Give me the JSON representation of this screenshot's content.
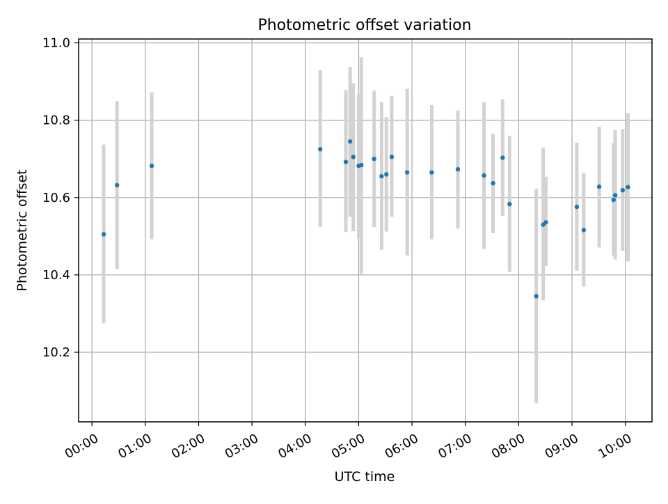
{
  "colors": {
    "point": "#1f77b4",
    "errorbar": "#d3d3d3",
    "grid": "#b0b0b0",
    "axes": "#000000"
  },
  "chart_data": {
    "type": "scatter",
    "title": "Photometric offset variation",
    "xlabel": "UTC time",
    "ylabel": "Photometric offset",
    "xlim": [
      -0.25,
      10.5
    ],
    "ylim": [
      10.02,
      11.01
    ],
    "grid": true,
    "x_tick_values": [
      0,
      1,
      2,
      3,
      4,
      5,
      6,
      7,
      8,
      9,
      10
    ],
    "x_tick_labels": [
      "00:00",
      "01:00",
      "02:00",
      "03:00",
      "04:00",
      "05:00",
      "06:00",
      "07:00",
      "08:00",
      "09:00",
      "10:00"
    ],
    "y_tick_values": [
      10.2,
      10.4,
      10.6,
      10.8,
      11.0
    ],
    "y_tick_labels": [
      "10.2",
      "10.4",
      "10.6",
      "10.8",
      "11.0"
    ],
    "points": [
      {
        "x": 0.22,
        "y": 10.505,
        "ylow": 10.275,
        "yhigh": 10.737
      },
      {
        "x": 0.47,
        "y": 10.632,
        "ylow": 10.415,
        "yhigh": 10.849
      },
      {
        "x": 1.12,
        "y": 10.682,
        "ylow": 10.492,
        "yhigh": 10.872
      },
      {
        "x": 4.28,
        "y": 10.725,
        "ylow": 10.524,
        "yhigh": 10.929
      },
      {
        "x": 4.76,
        "y": 10.692,
        "ylow": 10.511,
        "yhigh": 10.878
      },
      {
        "x": 4.84,
        "y": 10.745,
        "ylow": 10.55,
        "yhigh": 10.938
      },
      {
        "x": 4.9,
        "y": 10.705,
        "ylow": 10.513,
        "yhigh": 10.896
      },
      {
        "x": 5.0,
        "y": 10.682,
        "ylow": 10.494,
        "yhigh": 10.868
      },
      {
        "x": 5.05,
        "y": 10.684,
        "ylow": 10.402,
        "yhigh": 10.963
      },
      {
        "x": 5.29,
        "y": 10.7,
        "ylow": 10.524,
        "yhigh": 10.877
      },
      {
        "x": 5.43,
        "y": 10.655,
        "ylow": 10.465,
        "yhigh": 10.847
      },
      {
        "x": 5.52,
        "y": 10.66,
        "ylow": 10.512,
        "yhigh": 10.808
      },
      {
        "x": 5.62,
        "y": 10.705,
        "ylow": 10.55,
        "yhigh": 10.863
      },
      {
        "x": 5.91,
        "y": 10.665,
        "ylow": 10.45,
        "yhigh": 10.881
      },
      {
        "x": 6.37,
        "y": 10.665,
        "ylow": 10.492,
        "yhigh": 10.839
      },
      {
        "x": 6.86,
        "y": 10.673,
        "ylow": 10.52,
        "yhigh": 10.825
      },
      {
        "x": 7.35,
        "y": 10.657,
        "ylow": 10.467,
        "yhigh": 10.847
      },
      {
        "x": 7.52,
        "y": 10.637,
        "ylow": 10.508,
        "yhigh": 10.765
      },
      {
        "x": 7.7,
        "y": 10.703,
        "ylow": 10.553,
        "yhigh": 10.854
      },
      {
        "x": 7.83,
        "y": 10.583,
        "ylow": 10.408,
        "yhigh": 10.76
      },
      {
        "x": 8.33,
        "y": 10.345,
        "ylow": 10.068,
        "yhigh": 10.623
      },
      {
        "x": 8.46,
        "y": 10.53,
        "ylow": 10.334,
        "yhigh": 10.729
      },
      {
        "x": 8.51,
        "y": 10.536,
        "ylow": 10.423,
        "yhigh": 10.654
      },
      {
        "x": 9.09,
        "y": 10.576,
        "ylow": 10.411,
        "yhigh": 10.742
      },
      {
        "x": 9.22,
        "y": 10.516,
        "ylow": 10.37,
        "yhigh": 10.664
      },
      {
        "x": 9.51,
        "y": 10.628,
        "ylow": 10.471,
        "yhigh": 10.783
      },
      {
        "x": 9.78,
        "y": 10.594,
        "ylow": 10.45,
        "yhigh": 10.741
      },
      {
        "x": 9.81,
        "y": 10.606,
        "ylow": 10.44,
        "yhigh": 10.775
      },
      {
        "x": 9.95,
        "y": 10.619,
        "ylow": 10.462,
        "yhigh": 10.777
      },
      {
        "x": 10.05,
        "y": 10.627,
        "ylow": 10.435,
        "yhigh": 10.818
      }
    ]
  }
}
